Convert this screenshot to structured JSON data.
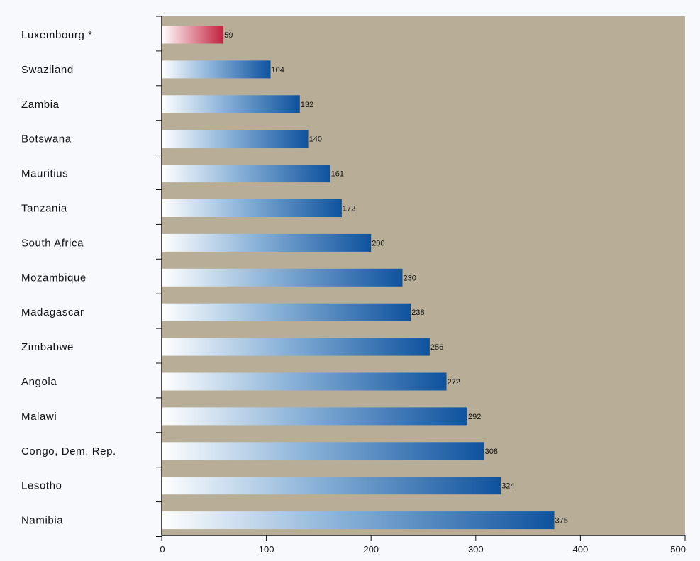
{
  "chart_data": {
    "type": "bar",
    "orientation": "horizontal",
    "title": "",
    "xlabel": "",
    "ylabel": "",
    "categories": [
      "Luxembourg *",
      "Swaziland",
      "Zambia",
      "Botswana",
      "Mauritius",
      "Tanzania",
      "South Africa",
      "Mozambique",
      "Madagascar",
      "Zimbabwe",
      "Angola",
      "Malawi",
      "Congo, Dem. Rep.",
      "Lesotho",
      "Namibia"
    ],
    "values": [
      59,
      104,
      132,
      140,
      161,
      172,
      200,
      230,
      238,
      256,
      272,
      292,
      308,
      324,
      375
    ],
    "value_labels": [
      "59",
      "104",
      "132",
      "140",
      "161",
      "172",
      "200",
      "230",
      "238",
      "256",
      "272",
      "292",
      "308",
      "324",
      "375"
    ],
    "highlight_index": 0,
    "xlim": [
      0,
      500
    ],
    "xticks": [
      0,
      100,
      200,
      300,
      400,
      500
    ],
    "xtick_labels": [
      "0",
      "100",
      "200",
      "300",
      "400",
      "500"
    ],
    "grid": false,
    "legend": "none",
    "colors": {
      "plot_background": "#b8ae98",
      "page_background": "#f8f9fc",
      "bar_start": "#ffffff",
      "bar_mid": "#8ab2d8",
      "bar_end": "#0e529e",
      "highlight_start": "#ffffff",
      "highlight_end": "#c2213e",
      "axis": "#111111",
      "text": "#111111"
    }
  }
}
